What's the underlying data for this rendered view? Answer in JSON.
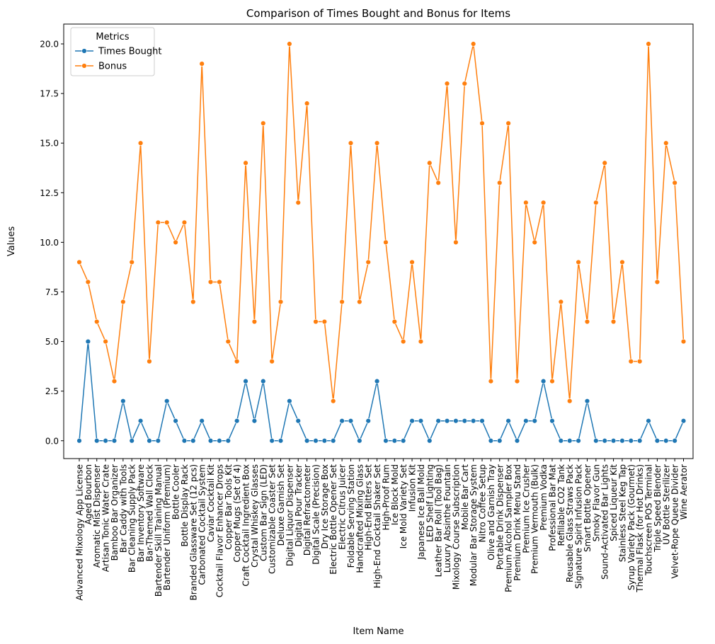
{
  "chart_data": {
    "type": "line",
    "title": "Comparison of Times Bought and Bonus for Items",
    "xlabel": "Item Name",
    "ylabel": "Values",
    "ylim": [
      -0.9,
      21
    ],
    "yticks": [
      0.0,
      2.5,
      5.0,
      7.5,
      10.0,
      12.5,
      15.0,
      17.5,
      20.0
    ],
    "ytick_labels": [
      "0.0",
      "2.5",
      "5.0",
      "7.5",
      "10.0",
      "12.5",
      "15.0",
      "17.5",
      "20.0"
    ],
    "grid": false,
    "legend": {
      "title": "Metrics",
      "placement": "top-left"
    },
    "categories": [
      "Advanced Mixology App License",
      "Aged Bourbon",
      "Aromatic Mist Dispenser",
      "Artisan Tonic Water Crate",
      "Bamboo Bar Organizer",
      "Bar Caddy with Tools",
      "Bar Cleaning Supply Pack",
      "Bar Inventory Software",
      "Bar-Themed Wall Clock",
      "Bartender Skill Training Manual",
      "Bartender Uniform (Premium)",
      "Bottle Cooler",
      "Bottle Display Rack",
      "Branded Glassware Set (12 pcs)",
      "Carbonated Cocktail System",
      "Caviar Cocktail Kit",
      "Cocktail Flavor Enhancer Drops",
      "Copper Bar Tools Kit",
      "Copper Mugs (Set of 4)",
      "Craft Cocktail Ingredient Box",
      "Crystal Whiskey Glasses",
      "Custom Bar Sign (LED)",
      "Customizable Coaster Set",
      "Deluxe Garnish Set",
      "Digital Liquor Dispenser",
      "Digital Pour Tracker",
      "Digital Refractometer",
      "Digital Scale (Precision)",
      "Dry Ice Storage Box",
      "Electric Bottle Opener Set",
      "Electric Citrus Juicer",
      "Foldable Serving Station",
      "Handcrafted Mixing Glass",
      "High-End Bitters Set",
      "High-End Cocktail Shaker Set",
      "High-Proof Rum",
      "Ice Block Mold",
      "Ice Mold Variety Set",
      "Infusion Kit",
      "Japanese Ice Ball Mold",
      "LED Shelf Lighting",
      "Leather Bar Roll (Tool Bag)",
      "Luxury Absinthe Fountain",
      "Mixology Course Subscription",
      "Mobile Bar Cart",
      "Modular Bar Storage System",
      "Nitro Coffee Setup",
      "Olive and Garnish Tray",
      "Portable Drink Dispenser",
      "Premium Alcohol Sampler Box",
      "Premium Drink Menu Stand",
      "Premium Ice Crusher",
      "Premium Vermouth (Bulk)",
      "Premium Vodka",
      "Professional Bar Mat",
      "Refillable CO2 Tank",
      "Reusable Glass Straws Pack",
      "Signature Spirit Infusion Pack",
      "Smart Bottle Opener",
      "Smoky Flavor Gun",
      "Sound-Activated Bar Lights",
      "Spiced Liqueur Kit",
      "Stainless Steel Keg Tap",
      "Syrup Variety Pack (Gourmet)",
      "Thermal Flask (for Hot Drinks)",
      "Touchscreen POS Terminal",
      "Triple Speed Blender",
      "UV Bottle Sterilizer",
      "Velvet-Rope Queue Divider",
      "Wine Aerator"
    ],
    "series": [
      {
        "name": "Times Bought",
        "color": "#1f77b4",
        "values": [
          0,
          5,
          0,
          0,
          0,
          2,
          0,
          1,
          0,
          0,
          2,
          1,
          0,
          0,
          1,
          0,
          0,
          0,
          1,
          3,
          1,
          3,
          0,
          0,
          2,
          1,
          0,
          0,
          0,
          0,
          1,
          1,
          0,
          1,
          3,
          0,
          0,
          0,
          1,
          1,
          0,
          1,
          1,
          1,
          1,
          1,
          1,
          0,
          0,
          1,
          0,
          1,
          1,
          3,
          1,
          0,
          0,
          0,
          2,
          0,
          0,
          0,
          0,
          0,
          0,
          1,
          0,
          0,
          0,
          1
        ]
      },
      {
        "name": "Bonus",
        "color": "#ff7f0e",
        "values": [
          9,
          8,
          6,
          5,
          3,
          7,
          9,
          15,
          4,
          11,
          11,
          10,
          11,
          7,
          19,
          8,
          8,
          5,
          4,
          14,
          6,
          16,
          4,
          7,
          20,
          12,
          17,
          6,
          6,
          2,
          7,
          15,
          7,
          9,
          15,
          10,
          6,
          5,
          9,
          5,
          14,
          13,
          18,
          10,
          18,
          20,
          16,
          3,
          13,
          16,
          3,
          12,
          10,
          12,
          3,
          7,
          2,
          9,
          6,
          12,
          14,
          6,
          9,
          4,
          4,
          20,
          8,
          15,
          13,
          5
        ]
      }
    ]
  }
}
